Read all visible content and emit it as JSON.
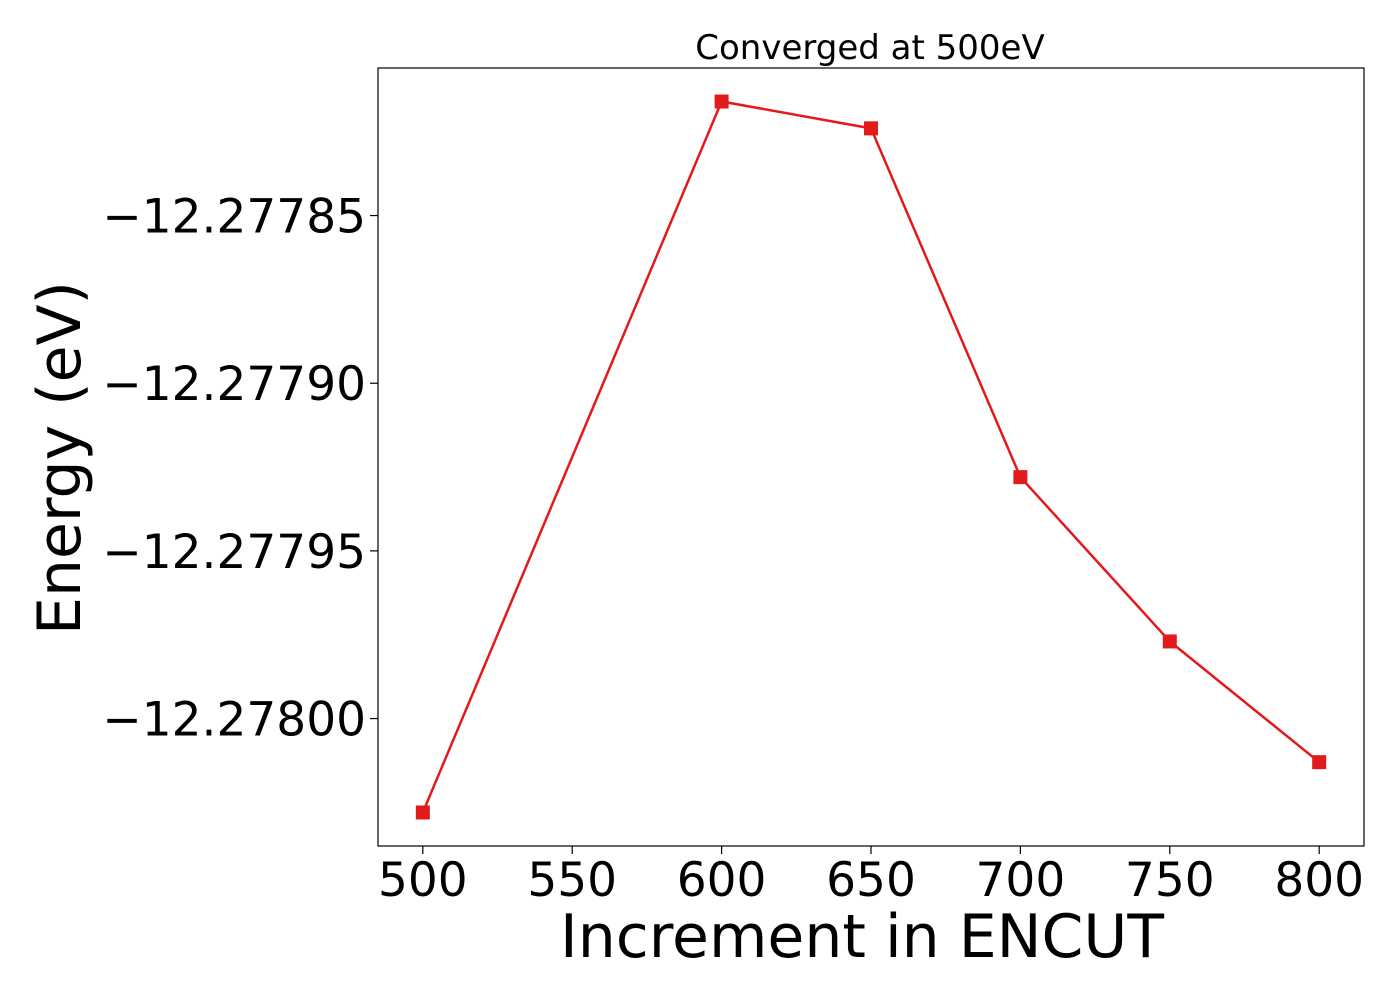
{
  "chart_data": {
    "type": "line",
    "title": "Converged at 500eV",
    "xlabel": "Increment in ENCUT",
    "ylabel": "Energy (eV)",
    "x": [
      500,
      600,
      650,
      700,
      750,
      800
    ],
    "series": [
      {
        "values": [
          -12.278028,
          -12.277816,
          -12.277824,
          -12.277928,
          -12.277977,
          -12.278013
        ],
        "color": "#e31a1c",
        "marker": "square"
      }
    ],
    "xticks": [
      500,
      550,
      600,
      650,
      700,
      750,
      800
    ],
    "xtick_labels": [
      "500",
      "550",
      "600",
      "650",
      "700",
      "750",
      "800"
    ],
    "yticks": [
      -12.27785,
      -12.2779,
      -12.27795,
      -12.278
    ],
    "ytick_labels": [
      "−12.27785",
      "−12.27790",
      "−12.27795",
      "−12.27800"
    ],
    "xlim": [
      485,
      815
    ],
    "ylim": [
      -12.278038,
      -12.277806
    ],
    "grid": false,
    "legend": "none"
  }
}
